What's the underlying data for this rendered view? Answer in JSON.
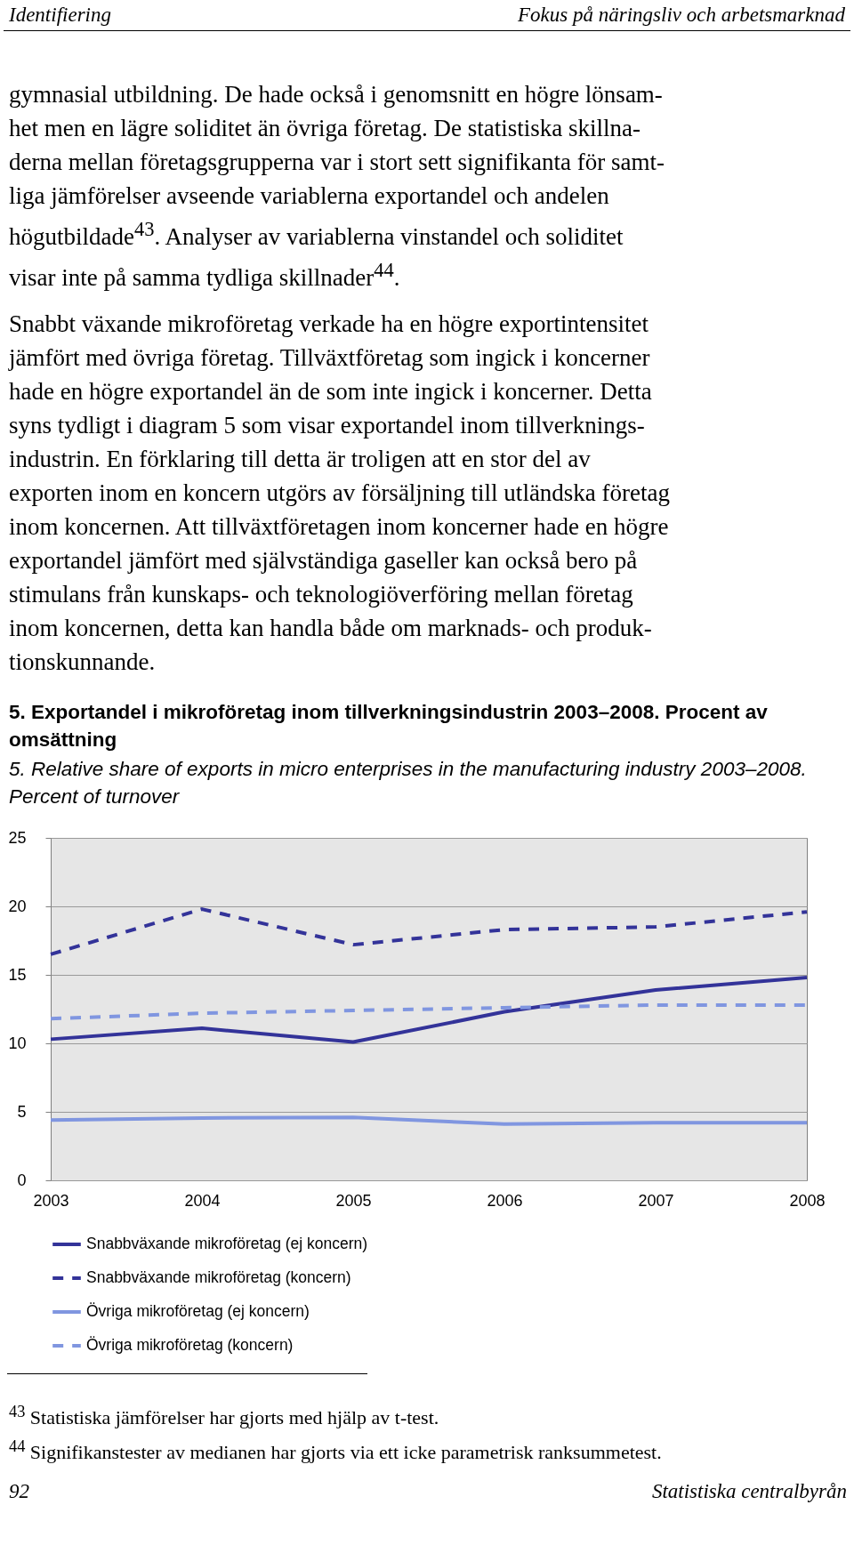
{
  "chart_data": {
    "type": "line",
    "title": "5. Exportandel i mikroföretag inom tillverkningsindustrin 2003–2008. Procent av omsättning",
    "subtitle": "5. Relative share of exports in micro enterprises in the manufacturing industry 2003–2008. Percent of turnover",
    "x": [
      2003,
      2004,
      2005,
      2006,
      2007,
      2008
    ],
    "xlim": [
      2003,
      2008
    ],
    "xticks": [
      2003,
      2004,
      2005,
      2006,
      2007,
      2008
    ],
    "ylim": [
      0,
      25
    ],
    "yticks": [
      0,
      5,
      10,
      15,
      20,
      25
    ],
    "grid": "y",
    "legend": "bottom left",
    "marker": "none",
    "series": [
      {
        "name": "Snabbväxande mikroföretag (ej koncern)",
        "color": "#333399",
        "line_style": "solid",
        "values": [
          10.3,
          11.1,
          10.1,
          12.3,
          13.9,
          14.8
        ]
      },
      {
        "name": "Snabbväxande mikroföretag (koncern)",
        "color": "#333399",
        "line_style": "dashed",
        "values": [
          16.5,
          19.8,
          17.2,
          18.3,
          18.5,
          19.6
        ]
      },
      {
        "name": "Övriga mikroföretag (ej koncern)",
        "color": "#8096e0",
        "line_style": "solid",
        "values": [
          4.4,
          4.55,
          4.6,
          4.1,
          4.2,
          4.2
        ]
      },
      {
        "name": "Övriga mikroföretag (koncern)",
        "color": "#8096e0",
        "line_style": "dashed",
        "values": [
          11.8,
          12.2,
          12.4,
          12.6,
          12.8,
          12.8
        ]
      }
    ],
    "annotations": [
      "Identifiering",
      "Fokus på näringsliv och arbetsmarknad",
      "gymnasial utbildning. De hade också i genomsnitt en högre lönsam-\nhet men en lägre soliditet än övriga företag. De statistiska skillna-\nderna mellan företagsgrupperna var i stort sett signifikanta för samt-\nliga jämförelser avseende variablerna exportandel och andelen\nhögutbildade$^{43}$. Analyser av variablerna vinstandel och soliditet\nvisar inte på samma tydliga skillnader$^{44}$.",
      "Snabbt växande mikroföretag verkade ha en högre exportintensitet\njämfört med övriga företag. Tillväxtföretag som ingick i koncerner\nhade en högre exportandel än de som inte ingick i koncerner. Detta\nsyns tydligt i diagram 5 som visar exportandel inom tillverknings-\nindustrin. En förklaring till detta är troligen att en stor del av\nexporten inom en koncern utgörs av försäljning till utländska företag\ninom koncernen. Att tillväxtföretagen inom koncerner hade en högre\nexportandel jämfört med självständiga gaseller kan också bero på\nstimulans från kunskaps- och teknologiöverföring mellan företag\ninom koncernen, detta kan handla både om marknads- och produk-\ntionskunnande.",
      "$^{43}$ Statistiska jämförelser har gjorts med hjälp av t-test.",
      "$^{44}$ Signifikanstester av medianen har gjorts via ett icke parametrisk ranksummetest.",
      "92",
      "Statistiska centralbyrån"
    ]
  }
}
